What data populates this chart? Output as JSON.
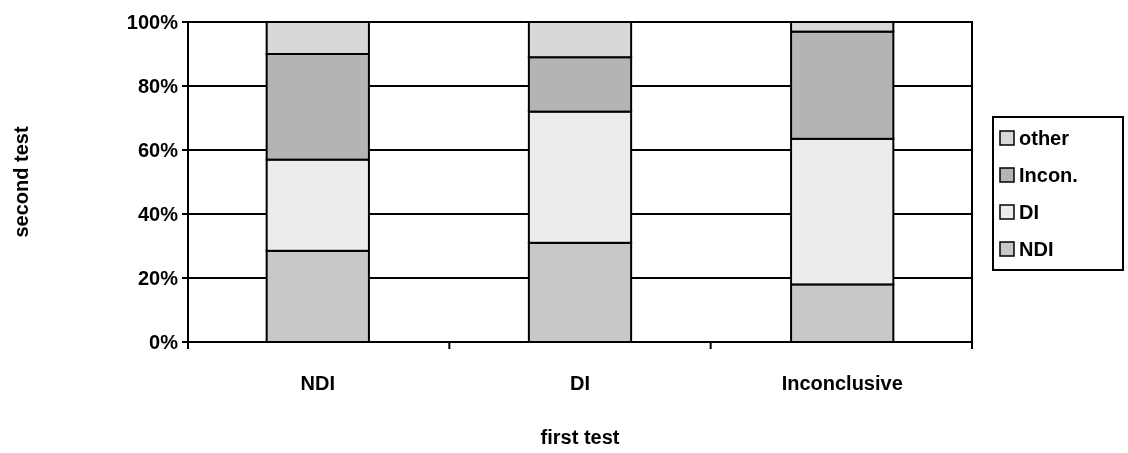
{
  "chart_data": {
    "type": "bar",
    "stacked": true,
    "xlabel": "first test",
    "ylabel": "second test",
    "categories": [
      "NDI",
      "DI",
      "Inconclusive"
    ],
    "series": [
      {
        "name": "NDI",
        "color": "#c8c8c8",
        "values": [
          28.5,
          31,
          18
        ]
      },
      {
        "name": "DI",
        "color": "#ececec",
        "values": [
          28.5,
          41,
          45.5
        ]
      },
      {
        "name": "Incon.",
        "color": "#b4b4b4",
        "values": [
          33,
          17,
          33.5
        ]
      },
      {
        "name": "other",
        "color": "#d8d8d8",
        "values": [
          10,
          11,
          3
        ]
      }
    ],
    "ylim": [
      0,
      100
    ],
    "yticks": [
      {
        "value": 0,
        "label": "0%"
      },
      {
        "value": 20,
        "label": "20%"
      },
      {
        "value": 40,
        "label": "40%"
      },
      {
        "value": 60,
        "label": "60%"
      },
      {
        "value": 80,
        "label": "80%"
      },
      {
        "value": 100,
        "label": "100%"
      }
    ],
    "grid": "y",
    "legend": "right"
  }
}
